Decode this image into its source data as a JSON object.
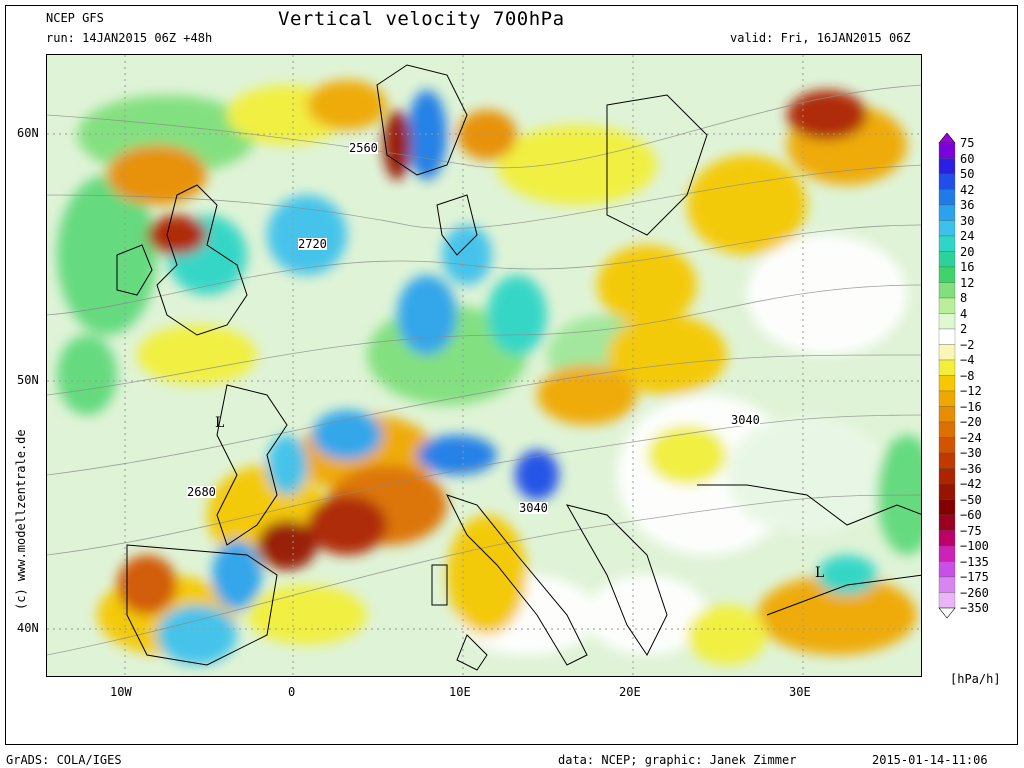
{
  "header": {
    "model": "NCEP GFS",
    "title": "Vertical velocity 700hPa",
    "run": "run: 14JAN2015 06Z +48h",
    "valid": "valid: Fri, 16JAN2015 06Z"
  },
  "map": {
    "lat_labels": [
      "60N",
      "50N",
      "40N"
    ],
    "lon_labels": [
      "10W",
      "0",
      "10E",
      "20E",
      "30E"
    ],
    "contour_labels": [
      "2560",
      "2720",
      "3040",
      "2680",
      "3040"
    ],
    "pressure_systems": [
      "L",
      "L"
    ]
  },
  "legend": {
    "unit": "[hPa/h]",
    "levels": [
      "75",
      "60",
      "50",
      "42",
      "36",
      "30",
      "24",
      "20",
      "16",
      "12",
      "8",
      "4",
      "2",
      "-2",
      "-4",
      "-8",
      "-12",
      "-16",
      "-20",
      "-24",
      "-30",
      "-36",
      "-42",
      "-50",
      "-60",
      "-75",
      "-100",
      "-135",
      "-175",
      "-260",
      "-350"
    ],
    "colors": {
      "top_arrow": "#9a00e0",
      "bottom_arrow": "#ffffff",
      "bands": [
        "#7a00dc",
        "#2b1fe6",
        "#1f4ee8",
        "#1e7be8",
        "#2aa3ec",
        "#3cc1ec",
        "#2fd5c6",
        "#2bd39a",
        "#3fd46a",
        "#7fe07c",
        "#b9ef98",
        "#dff8d2",
        "#ffffff",
        "#f8f7b6",
        "#f2ef3a",
        "#f5c800",
        "#f0a800",
        "#e88d00",
        "#dd7000",
        "#d25400",
        "#c03a00",
        "#ad2400",
        "#961400",
        "#830000",
        "#9c0020",
        "#c0006a",
        "#cc22b8",
        "#c850e6",
        "#d885f2",
        "#eab5f6"
      ]
    }
  },
  "watermark": "(c) www.modellzentrale.de",
  "footer": {
    "left": "GrADS: COLA/IGES",
    "credit": "data: NCEP; graphic: Janek Zimmer",
    "timestamp": "2015-01-14-11:06"
  }
}
